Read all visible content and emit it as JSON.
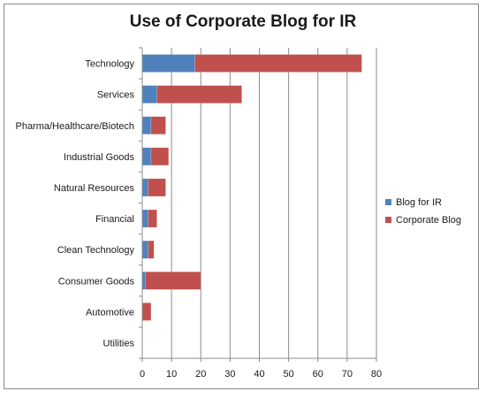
{
  "chart_data": {
    "type": "bar",
    "orientation": "horizontal",
    "stacked": true,
    "title": "Use of Corporate Blog for IR",
    "categories": [
      "Technology",
      "Services",
      "Pharma/Healthcare/Biotech",
      "Industrial Goods",
      "Natural Resources",
      "Financial",
      "Clean Technology",
      "Consumer Goods",
      "Automotive",
      "Utilities"
    ],
    "series": [
      {
        "name": "Blog for IR",
        "color": "#4f81bd",
        "values": [
          18,
          5,
          3,
          3,
          2,
          2,
          2,
          1,
          0,
          0
        ]
      },
      {
        "name": "Corporate Blog",
        "color": "#c0504d",
        "values": [
          57,
          29,
          5,
          6,
          6,
          3,
          2,
          19,
          3,
          0
        ]
      }
    ],
    "xlim": [
      0,
      80
    ],
    "xticks": [
      "0",
      "10",
      "20",
      "30",
      "40",
      "50",
      "60",
      "70",
      "80"
    ],
    "grid": "vertical",
    "legend": "right"
  }
}
